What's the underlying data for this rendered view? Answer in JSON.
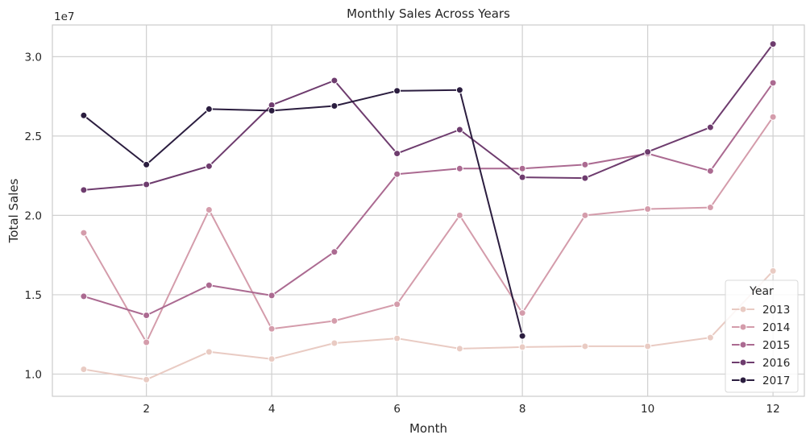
{
  "chart_data": {
    "type": "line",
    "title": "Monthly Sales Across Years",
    "xlabel": "Month",
    "ylabel": "Total Sales",
    "y_offset_text": "1e7",
    "xlim": [
      0.5,
      12.5
    ],
    "ylim": [
      8600000,
      32000000
    ],
    "xticks": [
      2,
      4,
      6,
      8,
      10,
      12
    ],
    "yticks": [
      10000000,
      15000000,
      20000000,
      25000000,
      30000000
    ],
    "ytick_labels": [
      "1.0",
      "1.5",
      "2.0",
      "2.5",
      "3.0"
    ],
    "grid": true,
    "legend": {
      "title": "Year",
      "position": "lower-right"
    },
    "series": [
      {
        "name": "2013",
        "color": "#e9cbc3",
        "x": [
          1,
          2,
          3,
          4,
          5,
          6,
          7,
          8,
          9,
          10,
          11,
          12
        ],
        "values": [
          10300000,
          9650000,
          11400000,
          10950000,
          11950000,
          12250000,
          11600000,
          11700000,
          11750000,
          11750000,
          12300000,
          16500000
        ]
      },
      {
        "name": "2014",
        "color": "#d49cab",
        "x": [
          1,
          2,
          3,
          4,
          5,
          6,
          7,
          8,
          9,
          10,
          11,
          12
        ],
        "values": [
          18900000,
          12000000,
          20350000,
          12850000,
          13350000,
          14400000,
          20000000,
          13850000,
          20000000,
          20400000,
          20500000,
          26200000
        ]
      },
      {
        "name": "2015",
        "color": "#ab6a91",
        "x": [
          1,
          2,
          3,
          4,
          5,
          6,
          7,
          8,
          9,
          10,
          11,
          12
        ],
        "values": [
          14900000,
          13700000,
          15600000,
          14950000,
          17700000,
          22600000,
          22950000,
          22950000,
          23200000,
          23900000,
          22800000,
          28350000
        ]
      },
      {
        "name": "2016",
        "color": "#6e3c6e",
        "x": [
          1,
          2,
          3,
          4,
          5,
          6,
          7,
          8,
          9,
          10,
          11,
          12
        ],
        "values": [
          21600000,
          21950000,
          23100000,
          26950000,
          28500000,
          23900000,
          25400000,
          22400000,
          22350000,
          24000000,
          25550000,
          30800000
        ]
      },
      {
        "name": "2017",
        "color": "#2b1d3f",
        "x": [
          1,
          2,
          3,
          4,
          5,
          6,
          7,
          8
        ],
        "values": [
          26300000,
          23200000,
          26700000,
          26600000,
          26900000,
          27850000,
          27900000,
          12400000
        ]
      }
    ]
  }
}
